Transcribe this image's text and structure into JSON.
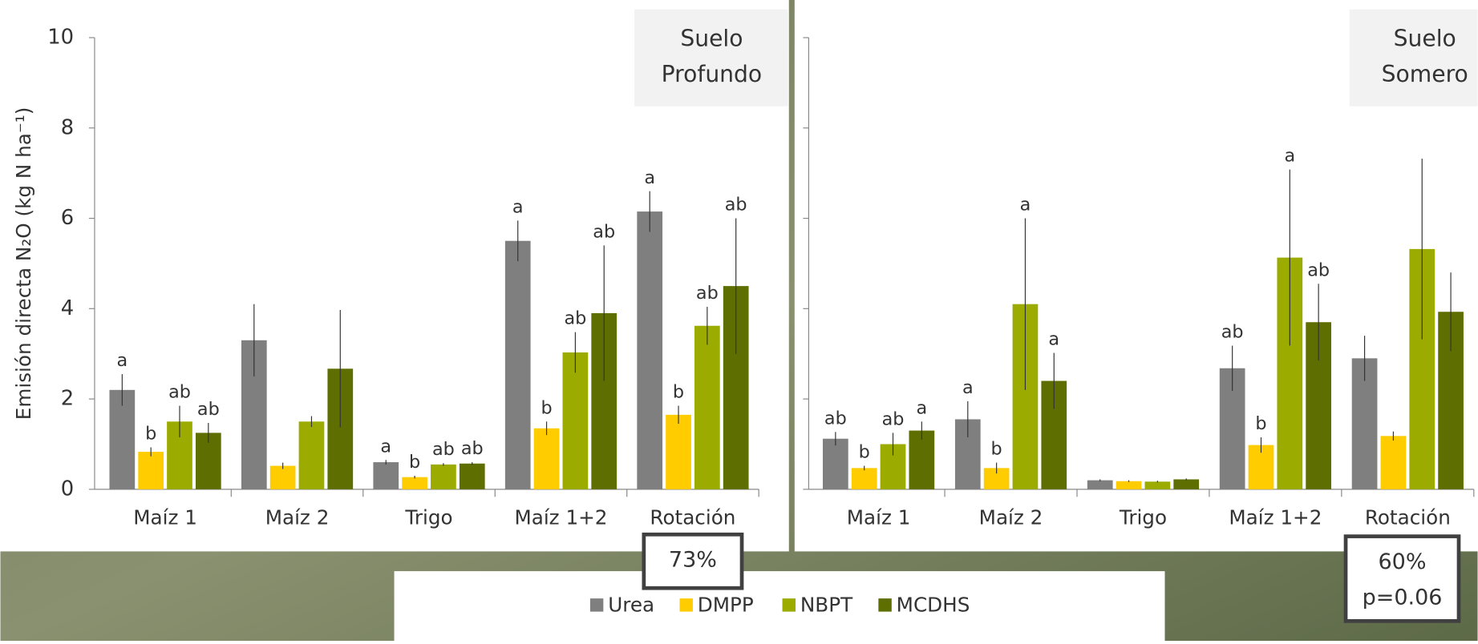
{
  "chart_data": [
    {
      "type": "bar",
      "annotation": [
        "Suelo",
        "Profundo"
      ],
      "note": [
        "73%"
      ],
      "ylabel": "Emisión directa N₂O (kg N ha⁻¹)",
      "categories": [
        "Maíz 1",
        "Maíz 2",
        "Trigo",
        "Maíz 1+2",
        "Rotación"
      ],
      "ylim": [
        0,
        10
      ],
      "yticks": [
        0,
        2,
        4,
        6,
        8,
        10
      ],
      "ytick_labels": true,
      "series": [
        {
          "name": "Urea",
          "color": "#7f7f7f",
          "values": [
            2.2,
            3.3,
            0.6,
            5.5,
            6.15
          ],
          "errors": [
            0.35,
            0.8,
            0.05,
            0.45,
            0.45
          ],
          "letters": [
            "a",
            null,
            "a",
            "a",
            "a"
          ]
        },
        {
          "name": "DMPP",
          "color": "#ffcc00",
          "values": [
            0.83,
            0.52,
            0.27,
            1.35,
            1.65
          ],
          "errors": [
            0.1,
            0.07,
            0.03,
            0.15,
            0.2
          ],
          "letters": [
            "b",
            null,
            "b",
            "b",
            "b"
          ]
        },
        {
          "name": "NBPT",
          "color": "#9bab00",
          "values": [
            1.5,
            1.5,
            0.55,
            3.03,
            3.62
          ],
          "errors": [
            0.35,
            0.12,
            0.03,
            0.45,
            0.42
          ],
          "letters": [
            "ab",
            null,
            "ab",
            "ab",
            "ab"
          ]
        },
        {
          "name": "MCDHS",
          "color": "#5f6e00",
          "values": [
            1.25,
            2.67,
            0.57,
            3.9,
            4.5
          ],
          "errors": [
            0.22,
            1.3,
            0.03,
            1.5,
            1.5
          ],
          "letters": [
            "ab",
            null,
            "ab",
            "ab",
            "ab"
          ]
        }
      ]
    },
    {
      "type": "bar",
      "annotation": [
        "Suelo",
        "Somero"
      ],
      "note": [
        "60%",
        "p=0.06"
      ],
      "categories": [
        "Maíz 1",
        "Maíz 2",
        "Trigo",
        "Maíz 1+2",
        "Rotación"
      ],
      "ylim": [
        0,
        10
      ],
      "yticks": [
        0,
        2,
        4,
        6,
        8,
        10
      ],
      "ytick_labels": false,
      "series": [
        {
          "name": "Urea",
          "color": "#7f7f7f",
          "values": [
            1.12,
            1.55,
            0.2,
            2.68,
            2.9
          ],
          "errors": [
            0.15,
            0.4,
            0.02,
            0.5,
            0.5
          ],
          "letters": [
            "ab",
            "a",
            null,
            "ab",
            null
          ]
        },
        {
          "name": "DMPP",
          "color": "#ffcc00",
          "values": [
            0.47,
            0.47,
            0.18,
            0.98,
            1.18
          ],
          "errors": [
            0.05,
            0.12,
            0.02,
            0.17,
            0.1
          ],
          "letters": [
            "b",
            "b",
            null,
            "b",
            null
          ]
        },
        {
          "name": "NBPT",
          "color": "#9bab00",
          "values": [
            1.0,
            4.1,
            0.17,
            5.13,
            5.32
          ],
          "errors": [
            0.25,
            1.9,
            0.02,
            1.95,
            2.0
          ],
          "letters": [
            "ab",
            "a",
            null,
            "a",
            null
          ]
        },
        {
          "name": "MCDHS",
          "color": "#5f6e00",
          "values": [
            1.3,
            2.4,
            0.22,
            3.7,
            3.93
          ],
          "errors": [
            0.2,
            0.62,
            0.02,
            0.85,
            0.87
          ],
          "letters": [
            "a",
            "a",
            null,
            "ab",
            null
          ]
        }
      ]
    }
  ]
}
